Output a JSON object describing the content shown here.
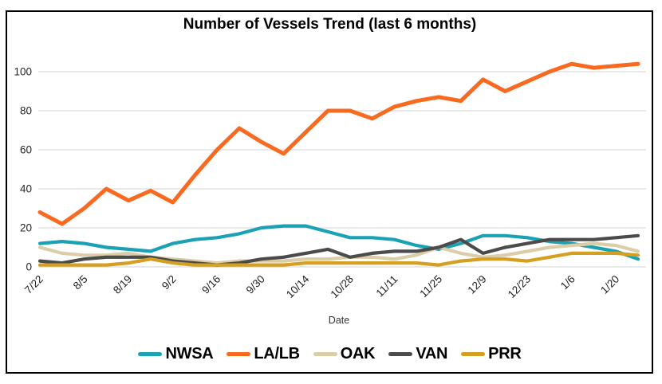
{
  "chart_data": {
    "type": "line",
    "title": "Number of Vessels Trend (last 6 months)",
    "xlabel": "Date",
    "ylabel": "",
    "ylim": [
      0,
      110
    ],
    "yticks": [
      0,
      20,
      40,
      60,
      80,
      100
    ],
    "grid": "horizontal",
    "legend_position": "bottom",
    "x": [
      "7/22",
      "7/29",
      "8/5",
      "8/12",
      "8/19",
      "8/26",
      "9/2",
      "9/9",
      "9/16",
      "9/23",
      "9/30",
      "10/7",
      "10/14",
      "10/21",
      "10/28",
      "11/4",
      "11/11",
      "11/18",
      "11/25",
      "12/2",
      "12/9",
      "12/16",
      "12/23",
      "12/30",
      "1/6",
      "1/13",
      "1/20",
      "1/27"
    ],
    "xtick_every": 2,
    "xtick_labels_shown": [
      "7/22",
      "8/5",
      "8/19",
      "9/2",
      "9/16",
      "9/30",
      "10/14",
      "10/28",
      "11/11",
      "11/25",
      "12/9",
      "12/23",
      "1/6",
      "1/20"
    ],
    "series": [
      {
        "name": "NWSA",
        "color": "#1AA2B4",
        "values": [
          12,
          13,
          12,
          10,
          9,
          8,
          12,
          14,
          15,
          17,
          20,
          21,
          21,
          18,
          15,
          15,
          14,
          11,
          9,
          12,
          16,
          16,
          15,
          13,
          12,
          10,
          8,
          4
        ]
      },
      {
        "name": "LA/LB",
        "color": "#F96A20",
        "values": [
          28,
          22,
          30,
          40,
          34,
          39,
          33,
          47,
          60,
          71,
          64,
          58,
          69,
          80,
          80,
          76,
          82,
          85,
          87,
          85,
          96,
          90,
          95,
          100,
          104,
          102,
          103,
          104
        ]
      },
      {
        "name": "OAK",
        "color": "#DBCDA8",
        "values": [
          10,
          7,
          6,
          6,
          7,
          5,
          4,
          3,
          2,
          3,
          3,
          3,
          4,
          4,
          5,
          5,
          4,
          6,
          10,
          7,
          5,
          6,
          8,
          10,
          11,
          12,
          11,
          8
        ]
      },
      {
        "name": "VAN",
        "color": "#4B4B4B",
        "values": [
          3,
          2,
          4,
          5,
          5,
          5,
          3,
          2,
          1,
          2,
          4,
          5,
          7,
          9,
          5,
          7,
          8,
          8,
          10,
          14,
          7,
          10,
          12,
          14,
          14,
          14,
          15,
          16
        ]
      },
      {
        "name": "PRR",
        "color": "#D5A021",
        "values": [
          1,
          1,
          1,
          1,
          2,
          4,
          2,
          1,
          1,
          1,
          1,
          1,
          2,
          2,
          2,
          2,
          2,
          2,
          1,
          3,
          4,
          4,
          3,
          5,
          7,
          7,
          7,
          6
        ]
      }
    ],
    "colors": {
      "gridline": "#DCDCDC",
      "axis_text": "#262626",
      "background": "#FFFFFF",
      "frame_border": "#000000"
    }
  }
}
